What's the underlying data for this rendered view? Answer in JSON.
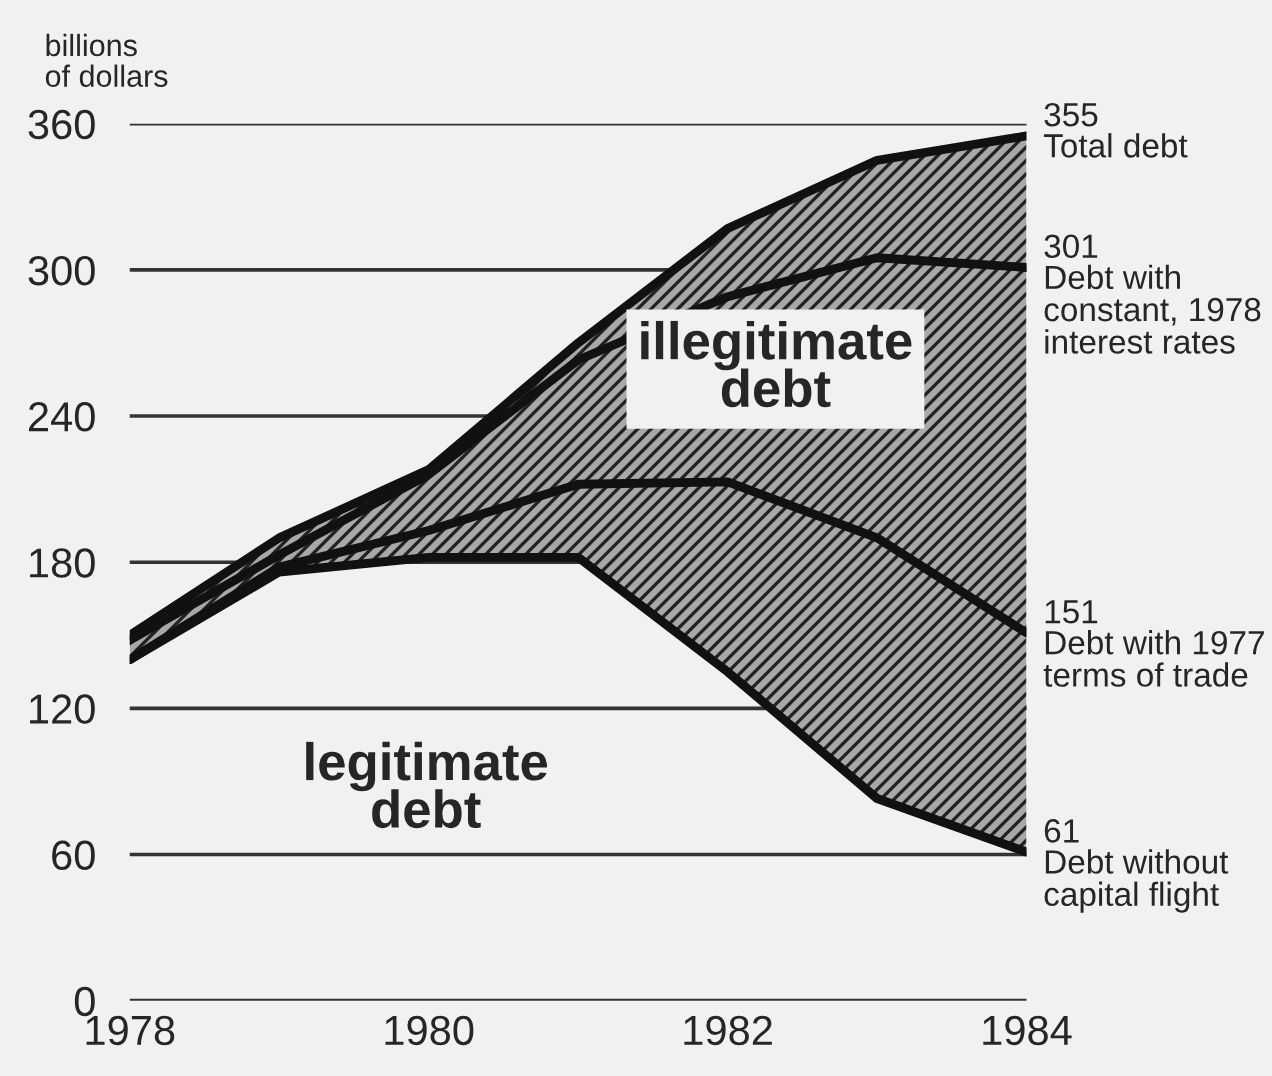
{
  "chart_data": {
    "type": "line",
    "ylabel": "billions\nof dollars",
    "x": [
      1978,
      1979,
      1980,
      1981,
      1982,
      1983,
      1984
    ],
    "series": [
      {
        "name": "Total debt",
        "color": "#111111",
        "values": [
          150,
          190,
          218,
          270,
          317,
          345,
          355
        ],
        "lower": [
          140,
          176,
          182,
          182,
          135,
          83,
          61
        ],
        "upper": [
          150,
          190,
          218,
          270,
          317,
          345,
          355
        ],
        "value_labels": [
          null,
          null,
          null,
          null,
          null,
          null,
          "355"
        ]
      },
      {
        "name": "Debt with\nconstant, 1978\ninterest rates",
        "color": "#111111",
        "values": [
          148,
          183,
          216,
          263,
          289,
          305,
          301
        ],
        "value_labels": [
          null,
          null,
          null,
          null,
          null,
          null,
          "301"
        ]
      },
      {
        "name": "Debt with 1977\nterms of trade",
        "color": "#111111",
        "values": [
          140,
          178,
          193,
          212,
          213,
          190,
          151
        ],
        "value_labels": [
          null,
          null,
          null,
          null,
          null,
          null,
          "151"
        ]
      },
      {
        "name": "Debt without\ncapital flight",
        "color": "#111111",
        "values": [
          140,
          176,
          182,
          182,
          135,
          83,
          61
        ],
        "value_labels": [
          null,
          null,
          null,
          null,
          null,
          null,
          "61"
        ]
      }
    ],
    "xlim": [
      1978,
      1984
    ],
    "xticks": [
      1978,
      1980,
      1982,
      1984
    ],
    "ylim": [
      0,
      360
    ],
    "yticks": [
      0,
      60,
      120,
      180,
      240,
      300,
      360
    ],
    "grid": "y",
    "legend": false,
    "marker": "none",
    "line_style": "solid",
    "annotations": [
      "illegitimate\ndebt",
      "legitimate\ndebt"
    ]
  }
}
